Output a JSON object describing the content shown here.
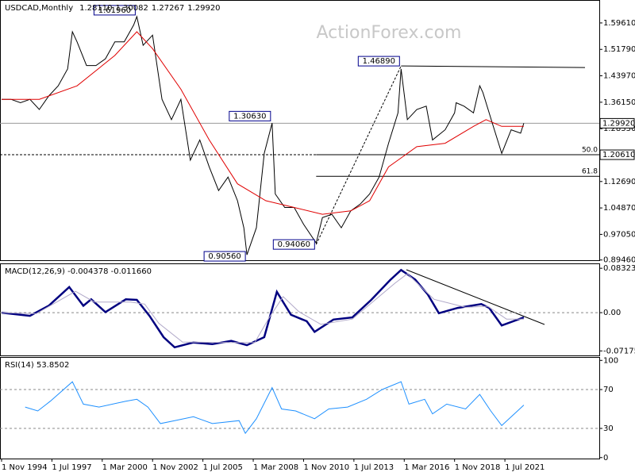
{
  "chart_data": [
    {
      "type": "line",
      "title": "USDCAD,Monthly",
      "header_values": [
        "1.28110",
        "1.30082",
        "1.27267",
        "1.29920"
      ],
      "watermark": "ActionForex.com",
      "xlim": [
        "1994-10",
        "2026-07"
      ],
      "ylim": [
        0.894,
        1.664
      ],
      "yticks": [
        {
          "value": 1.5961,
          "label": "1.59610"
        },
        {
          "value": 1.5179,
          "label": "1.51790"
        },
        {
          "value": 1.4397,
          "label": "1.43970"
        },
        {
          "value": 1.3615,
          "label": "1.36150"
        },
        {
          "value": 1.2833,
          "label": "1.28330"
        },
        {
          "value": 1.1269,
          "label": "1.12690"
        },
        {
          "value": 1.0487,
          "label": "1.04870"
        },
        {
          "value": 0.9705,
          "label": "0.97050"
        },
        {
          "value": 0.8946,
          "label": "0.89460"
        }
      ],
      "series": [
        {
          "color": "#000000",
          "x": [
            "1994-11",
            "1995-05",
            "1995-11",
            "1996-05",
            "1996-11",
            "1997-05",
            "1997-11",
            "1998-05",
            "1998-08",
            "1998-11",
            "1999-05",
            "1999-11",
            "2000-05",
            "2000-11",
            "2001-05",
            "2001-11",
            "2002-01",
            "2002-05",
            "2002-11",
            "2003-05",
            "2003-11",
            "2004-05",
            "2004-11",
            "2005-05",
            "2005-11",
            "2006-05",
            "2006-11",
            "2007-05",
            "2007-09",
            "2007-11",
            "2008-05",
            "2008-10",
            "2009-03",
            "2009-05",
            "2009-11",
            "2010-05",
            "2010-11",
            "2011-07",
            "2011-11",
            "2012-05",
            "2012-11",
            "2013-05",
            "2013-11",
            "2014-05",
            "2014-11",
            "2015-05",
            "2015-11",
            "2016-01",
            "2016-05",
            "2016-11",
            "2017-05",
            "2017-09",
            "2018-05",
            "2018-11",
            "2018-12",
            "2019-05",
            "2019-11",
            "2020-03",
            "2020-05",
            "2020-11",
            "2021-05",
            "2021-11",
            "2022-05",
            "2022-07"
          ],
          "values": [
            1.37,
            1.37,
            1.36,
            1.37,
            1.34,
            1.38,
            1.41,
            1.46,
            1.57,
            1.54,
            1.47,
            1.47,
            1.49,
            1.54,
            1.54,
            1.59,
            1.615,
            1.53,
            1.56,
            1.37,
            1.31,
            1.37,
            1.19,
            1.25,
            1.17,
            1.1,
            1.14,
            1.07,
            0.99,
            0.91,
            0.99,
            1.21,
            1.3,
            1.09,
            1.05,
            1.05,
            1.0,
            0.945,
            1.02,
            1.03,
            0.99,
            1.04,
            1.06,
            1.09,
            1.14,
            1.24,
            1.33,
            1.46,
            1.31,
            1.34,
            1.35,
            1.25,
            1.28,
            1.33,
            1.36,
            1.35,
            1.33,
            1.41,
            1.39,
            1.3,
            1.21,
            1.28,
            1.27,
            1.2992
          ]
        },
        {
          "color": "#e00000",
          "x": [
            "1994-11",
            "1996-11",
            "1998-11",
            "2000-11",
            "2002-01",
            "2002-11",
            "2004-05",
            "2005-11",
            "2007-05",
            "2008-11",
            "2010-05",
            "2011-11",
            "2013-05",
            "2014-05",
            "2015-05",
            "2016-11",
            "2018-05",
            "2019-11",
            "2020-07",
            "2021-05",
            "2022-07"
          ],
          "values": [
            1.37,
            1.37,
            1.41,
            1.5,
            1.57,
            1.52,
            1.4,
            1.25,
            1.12,
            1.07,
            1.05,
            1.03,
            1.04,
            1.07,
            1.17,
            1.23,
            1.24,
            1.29,
            1.31,
            1.29,
            1.29
          ]
        }
      ],
      "annotations": [
        {
          "label": "1.61960",
          "x": "2002-01",
          "value": 1.6196
        },
        {
          "label": "1.30630",
          "x": "2009-03",
          "value": 1.3063
        },
        {
          "label": "0.90560",
          "x": "2007-11",
          "value": 0.9056
        },
        {
          "label": "0.94060",
          "x": "2011-07",
          "value": 0.9406
        },
        {
          "label": "1.46890",
          "x": "2016-01",
          "value": 1.4689
        }
      ],
      "price_lines": [
        {
          "value": 1.2992,
          "label": "1.29920",
          "style": "solid"
        },
        {
          "value": 1.2061,
          "label": "1.20610",
          "style": "dotted"
        }
      ],
      "levels": [
        {
          "value": 1.2061,
          "label": "50.0"
        },
        {
          "value": 1.1424,
          "label": "61.8"
        }
      ]
    },
    {
      "type": "line",
      "title": "MACD(12,26,9) -0.004378 -0.011660",
      "ylim": [
        -0.0802,
        0.0924
      ],
      "yticks": [
        0.083235,
        {
          "value": 0,
          "label": "0.00"
        },
        -0.071752
      ],
      "reference_lines": [
        0
      ],
      "series": [
        {
          "color": "#000080",
          "x": [
            "1994-11",
            "1996-05",
            "1997-05",
            "1998-06",
            "1999-03",
            "1999-08",
            "2000-05",
            "2001-06",
            "2002-01",
            "2002-09",
            "2003-06",
            "2004-01",
            "2005-01",
            "2006-01",
            "2007-01",
            "2007-11",
            "2008-10",
            "2009-06",
            "2010-03",
            "2011-01",
            "2011-06",
            "2012-06",
            "2013-06",
            "2014-06",
            "2015-06",
            "2016-01",
            "2016-10",
            "2017-06",
            "2018-01",
            "2019-01",
            "2020-04",
            "2020-09",
            "2021-05",
            "2022-07"
          ],
          "values": [
            0.0,
            -0.006,
            0.013,
            0.048,
            0.013,
            0.025,
            0.001,
            0.025,
            0.024,
            -0.006,
            -0.046,
            -0.065,
            -0.056,
            -0.059,
            -0.053,
            -0.061,
            -0.046,
            0.039,
            -0.004,
            -0.016,
            -0.036,
            -0.013,
            -0.009,
            0.024,
            0.061,
            0.08,
            0.062,
            0.034,
            -0.001,
            0.009,
            0.016,
            0.009,
            -0.024,
            -0.009
          ]
        },
        {
          "color": "#b0a8c8",
          "x": [
            "1994-11",
            "1996-09",
            "1998-10",
            "1999-10",
            "2001-09",
            "2002-06",
            "2003-03",
            "2004-06",
            "2006-06",
            "2008-04",
            "2009-01",
            "2009-10",
            "2010-08",
            "2011-10",
            "2013-06",
            "2015-09",
            "2016-05",
            "2017-10",
            "2019-06",
            "2020-08",
            "2021-08",
            "2022-07"
          ],
          "values": [
            0.0,
            -0.002,
            0.04,
            0.02,
            0.02,
            0.016,
            -0.02,
            -0.055,
            -0.056,
            -0.056,
            -0.01,
            0.03,
            0.002,
            -0.022,
            -0.012,
            0.055,
            0.073,
            0.025,
            0.01,
            0.012,
            -0.012,
            -0.012
          ]
        }
      ]
    },
    {
      "type": "line",
      "title": "RSI(14) 53.8502",
      "ylim": [
        -1,
        103.5
      ],
      "yticks": [
        100,
        70,
        30,
        0
      ],
      "reference_lines": [
        70,
        30
      ],
      "xticks": [
        {
          "value": "1994-11",
          "label": "1 Nov 1994"
        },
        {
          "value": "1997-07",
          "label": "1 Jul 1997"
        },
        {
          "value": "2000-03",
          "label": "1 Mar 2000"
        },
        {
          "value": "2002-11",
          "label": "1 Nov 2002"
        },
        {
          "value": "2005-07",
          "label": "1 Jul 2005"
        },
        {
          "value": "2008-03",
          "label": "1 Mar 2008"
        },
        {
          "value": "2010-11",
          "label": "1 Nov 2010"
        },
        {
          "value": "2013-07",
          "label": "1 Jul 2013"
        },
        {
          "value": "2016-03",
          "label": "1 Mar 2016"
        },
        {
          "value": "2018-11",
          "label": "1 Nov 2018"
        },
        {
          "value": "2021-07",
          "label": "1 Jul 2021"
        }
      ],
      "series": [
        {
          "color": "#1e90ff",
          "x": [
            "1996-02",
            "1996-10",
            "1997-06",
            "1998-08",
            "1999-03",
            "2000-01",
            "2001-06",
            "2002-01",
            "2002-08",
            "2003-04",
            "2004-01",
            "2005-01",
            "2006-01",
            "2007-06",
            "2007-10",
            "2008-05",
            "2009-03",
            "2009-09",
            "2010-06",
            "2011-06",
            "2012-03",
            "2013-03",
            "2014-03",
            "2015-01",
            "2016-01",
            "2016-06",
            "2017-04",
            "2017-09",
            "2018-06",
            "2019-06",
            "2020-03",
            "2020-10",
            "2021-05",
            "2022-03",
            "2022-07"
          ],
          "values": [
            52,
            48,
            58,
            78,
            55,
            52,
            58,
            60,
            52,
            35,
            38,
            42,
            35,
            38,
            25,
            40,
            72,
            50,
            48,
            40,
            50,
            52,
            60,
            70,
            78,
            55,
            60,
            45,
            55,
            50,
            65,
            48,
            33,
            48,
            54
          ]
        }
      ]
    }
  ]
}
